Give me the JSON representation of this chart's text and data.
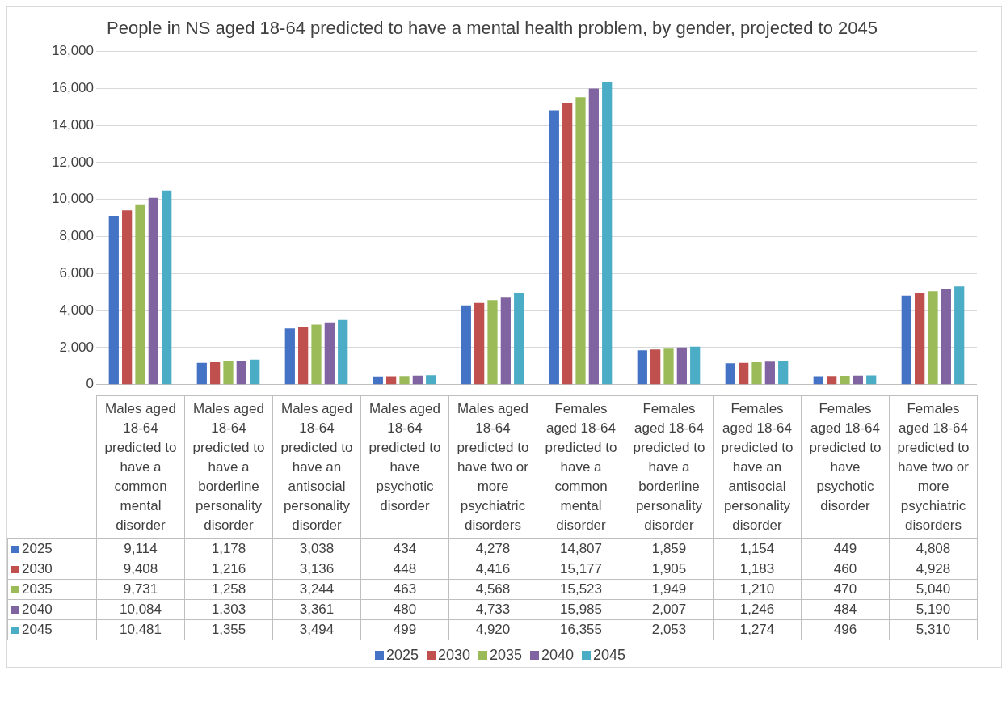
{
  "chart_data": {
    "type": "bar",
    "title": "People in NS aged 18-64 predicted to have a mental health problem, by gender, projected to 2045",
    "categories": [
      "Males aged 18-64 predicted to have a common mental disorder",
      "Males aged 18-64 predicted to have a borderline personality disorder",
      "Males aged 18-64 predicted to have an antisocial personality disorder",
      "Males aged 18-64 predicted to have psychotic disorder",
      "Males aged 18-64 predicted to have two or more psychiatric disorders",
      "Females aged 18-64 predicted to have a common mental disorder",
      "Females aged 18-64 predicted to have a borderline personality disorder",
      "Females aged 18-64 predicted to have an antisocial personality disorder",
      "Females aged 18-64 predicted to have psychotic disorder",
      "Females aged 18-64 predicted to have two or more psychiatric disorders"
    ],
    "series": [
      {
        "name": "2025",
        "color": "#4472c4",
        "values": [
          9114,
          1178,
          3038,
          434,
          4278,
          14807,
          1859,
          1154,
          449,
          4808
        ],
        "value_labels": [
          "9,114",
          "1,178",
          "3,038",
          "434",
          "4,278",
          "14,807",
          "1,859",
          "1,154",
          "449",
          "4,808"
        ]
      },
      {
        "name": "2030",
        "color": "#c0504d",
        "values": [
          9408,
          1216,
          3136,
          448,
          4416,
          15177,
          1905,
          1183,
          460,
          4928
        ],
        "value_labels": [
          "9,408",
          "1,216",
          "3,136",
          "448",
          "4,416",
          "15,177",
          "1,905",
          "1,183",
          "460",
          "4,928"
        ]
      },
      {
        "name": "2035",
        "color": "#9bbb59",
        "values": [
          9731,
          1258,
          3244,
          463,
          4568,
          15523,
          1949,
          1210,
          470,
          5040
        ],
        "value_labels": [
          "9,731",
          "1,258",
          "3,244",
          "463",
          "4,568",
          "15,523",
          "1,949",
          "1,210",
          "470",
          "5,040"
        ]
      },
      {
        "name": "2040",
        "color": "#8064a2",
        "values": [
          10084,
          1303,
          3361,
          480,
          4733,
          15985,
          2007,
          1246,
          484,
          5190
        ],
        "value_labels": [
          "10,084",
          "1,303",
          "3,361",
          "480",
          "4,733",
          "15,985",
          "2,007",
          "1,246",
          "484",
          "5,190"
        ]
      },
      {
        "name": "2045",
        "color": "#4bacc6",
        "values": [
          10481,
          1355,
          3494,
          499,
          4920,
          16355,
          2053,
          1274,
          496,
          5310
        ],
        "value_labels": [
          "10,481",
          "1,355",
          "3,494",
          "499",
          "4,920",
          "16,355",
          "2,053",
          "1,274",
          "496",
          "5,310"
        ]
      }
    ],
    "ylim": [
      0,
      18000
    ],
    "yticks": [
      {
        "value": 0,
        "label": "0"
      },
      {
        "value": 2000,
        "label": "2,000"
      },
      {
        "value": 4000,
        "label": "4,000"
      },
      {
        "value": 6000,
        "label": "6,000"
      },
      {
        "value": 8000,
        "label": "8,000"
      },
      {
        "value": 10000,
        "label": "10,000"
      },
      {
        "value": 12000,
        "label": "12,000"
      },
      {
        "value": 14000,
        "label": "14,000"
      },
      {
        "value": 16000,
        "label": "16,000"
      },
      {
        "value": 18000,
        "label": "18,000"
      }
    ],
    "grid": "y",
    "legend": "bottom"
  }
}
